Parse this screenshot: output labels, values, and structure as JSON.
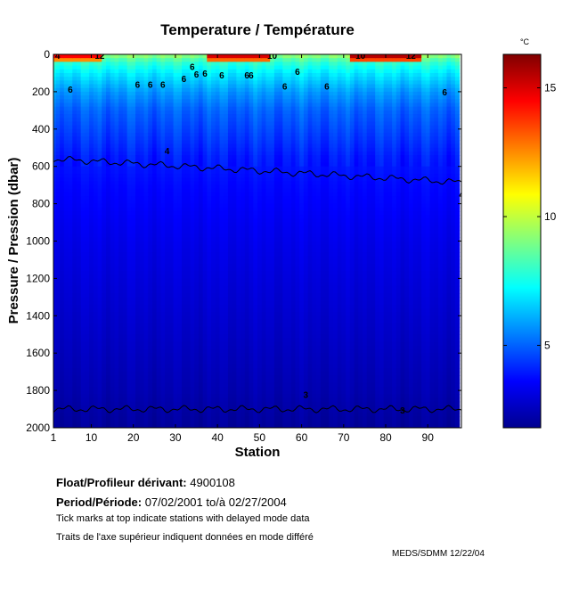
{
  "chart_data": {
    "type": "heatmap",
    "title": "Temperature / Température",
    "xlabel": "Station",
    "ylabel": "Pressure / Pression (dbar)",
    "xlim": [
      1,
      98
    ],
    "ylim": [
      2000,
      0
    ],
    "x_ticks": [
      1,
      10,
      20,
      30,
      40,
      50,
      60,
      70,
      80,
      90
    ],
    "y_ticks": [
      0,
      200,
      400,
      600,
      800,
      1000,
      1200,
      1400,
      1600,
      1800,
      2000
    ],
    "colorbar": {
      "unit": "°C",
      "range": [
        1.8,
        16.3
      ],
      "ticks": [
        5,
        10,
        15
      ],
      "colormap": "jet"
    },
    "depth_profile": [
      {
        "p": 0,
        "t": 9.5
      },
      {
        "p": 40,
        "t": 8.0
      },
      {
        "p": 100,
        "t": 7.0
      },
      {
        "p": 200,
        "t": 5.8
      },
      {
        "p": 300,
        "t": 5.0
      },
      {
        "p": 400,
        "t": 4.6
      },
      {
        "p": 550,
        "t": 4.0
      },
      {
        "p": 700,
        "t": 3.7
      },
      {
        "p": 1000,
        "t": 3.3
      },
      {
        "p": 1400,
        "t": 2.9
      },
      {
        "p": 1800,
        "t": 2.5
      },
      {
        "p": 2000,
        "t": 2.2
      }
    ],
    "warm_patches": [
      {
        "x": [
          1,
          12
        ],
        "p": [
          0,
          40
        ],
        "t": 14.5
      },
      {
        "x": [
          38,
          52
        ],
        "p": [
          0,
          40
        ],
        "t": 15.0
      },
      {
        "x": [
          72,
          88
        ],
        "p": [
          0,
          40
        ],
        "t": 15.5
      }
    ],
    "contours": [
      {
        "level": 4,
        "label": "4",
        "pressure": 560
      },
      {
        "level": 3,
        "label": "3",
        "pressure": 1900
      }
    ],
    "contour_labels": [
      {
        "text": "4",
        "x": 2,
        "p": 5
      },
      {
        "text": "12",
        "x": 12,
        "p": 5
      },
      {
        "text": "10",
        "x": 53,
        "p": 5
      },
      {
        "text": "10",
        "x": 74,
        "p": 5
      },
      {
        "text": "12",
        "x": 86,
        "p": 5
      },
      {
        "text": "6",
        "x": 5,
        "p": 185
      },
      {
        "text": "6",
        "x": 21,
        "p": 160
      },
      {
        "text": "6",
        "x": 24,
        "p": 160
      },
      {
        "text": "6",
        "x": 27,
        "p": 160
      },
      {
        "text": "6",
        "x": 32,
        "p": 130
      },
      {
        "text": "6",
        "x": 35,
        "p": 105
      },
      {
        "text": "6",
        "x": 37,
        "p": 100
      },
      {
        "text": "6",
        "x": 41,
        "p": 110
      },
      {
        "text": "6",
        "x": 47,
        "p": 110
      },
      {
        "text": "6",
        "x": 48,
        "p": 110
      },
      {
        "text": "6",
        "x": 56,
        "p": 170
      },
      {
        "text": "6",
        "x": 59,
        "p": 90
      },
      {
        "text": "6",
        "x": 66,
        "p": 170
      },
      {
        "text": "6",
        "x": 94,
        "p": 200
      },
      {
        "text": "6",
        "x": 34,
        "p": 65
      },
      {
        "text": "4",
        "x": 28,
        "p": 515
      },
      {
        "text": "4",
        "x": 98,
        "p": 750
      },
      {
        "text": "3",
        "x": 84,
        "p": 1905
      },
      {
        "text": "3",
        "x": 61,
        "p": 1820
      }
    ]
  },
  "info": {
    "float_label": "Float/Profileur dérivant:",
    "float_id": "4900108",
    "period_label": "Period/Période:",
    "period_start": "07/02/2001",
    "period_sep": "to/à",
    "period_end": "02/27/2004",
    "note_en": "Tick marks at top indicate stations with delayed mode data",
    "note_fr": "Traits de l'axe supérieur indiquent données en mode différé",
    "credit": "MEDS/SDMM 12/22/04"
  }
}
